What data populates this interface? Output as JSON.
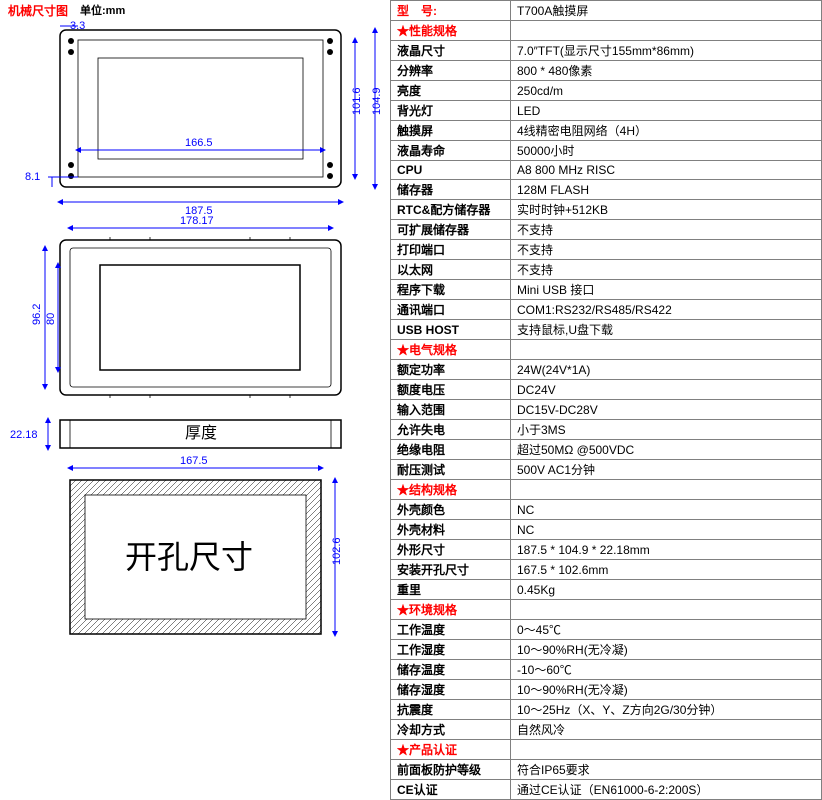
{
  "left": {
    "title": "机械尺寸图",
    "unit": "单位:mm",
    "dims": {
      "top_gap": "3.3",
      "inner_h1": "101.6",
      "outer_h1": "104.9",
      "inner_w1": "166.5",
      "left_gap": "8.1",
      "outer_w1": "187.5",
      "top_w2": "178.17",
      "left_h2a": "96.2",
      "left_h2b": "80",
      "thickness_label": "厚度",
      "thickness": "22.18",
      "cut_w": "167.5",
      "cut_h": "102.6",
      "cut_label": "开孔尺寸"
    },
    "colors": {
      "dim": "#0000ff",
      "outline": "#000000",
      "title": "#ff0000"
    }
  },
  "spec": {
    "model_label": "型　号:",
    "model_value": "T700A触摸屏",
    "sections": [
      {
        "header": "★性能规格",
        "rows": [
          [
            "液晶尺寸",
            "7.0″TFT(显示尺寸155mm*86mm)"
          ],
          [
            "分辨率",
            "800 * 480像素"
          ],
          [
            "亮度",
            "250cd/m"
          ],
          [
            "背光灯",
            "LED"
          ],
          [
            "触摸屏",
            "4线精密电阻网络（4H）"
          ],
          [
            "液晶寿命",
            "50000小时"
          ],
          [
            "CPU",
            "A8 800 MHz RISC"
          ],
          [
            "储存器",
            "128M FLASH"
          ],
          [
            "RTC&配方储存器",
            "实时时钟+512KB"
          ],
          [
            "可扩展储存器",
            "不支持"
          ],
          [
            "打印端口",
            "不支持"
          ],
          [
            "以太网",
            "不支持"
          ],
          [
            "程序下载",
            "Mini USB 接口"
          ],
          [
            "通讯端口",
            "COM1:RS232/RS485/RS422"
          ],
          [
            "USB HOST",
            "支持鼠标,U盘下载"
          ]
        ]
      },
      {
        "header": "★电气规格",
        "rows": [
          [
            "额定功率",
            "24W(24V*1A)"
          ],
          [
            "额度电压",
            "DC24V"
          ],
          [
            "输入范围",
            "DC15V-DC28V"
          ],
          [
            "允许失电",
            "小于3MS"
          ],
          [
            "绝缘电阻",
            "超过50MΩ @500VDC"
          ],
          [
            "耐压测试",
            "500V AC1分钟"
          ]
        ]
      },
      {
        "header": "★结构规格",
        "rows": [
          [
            "外壳颜色",
            "NC"
          ],
          [
            "外壳材料",
            "NC"
          ],
          [
            "外形尺寸",
            "187.5 * 104.9 * 22.18mm"
          ],
          [
            "安装开孔尺寸",
            "167.5 * 102.6mm"
          ],
          [
            "重里",
            "0.45Kg"
          ]
        ]
      },
      {
        "header": "★环境规格",
        "rows": [
          [
            "工作温度",
            "0～45℃"
          ],
          [
            "工作湿度",
            "10～90%RH(无冷凝)"
          ],
          [
            "储存温度",
            "-10～60℃"
          ],
          [
            "储存湿度",
            "10～90%RH(无冷凝)"
          ],
          [
            "抗震度",
            "10～25Hz（X、Y、Z方向2G/30分钟）"
          ],
          [
            "冷却方式",
            "自然风冷"
          ]
        ]
      },
      {
        "header": "★产品认证",
        "rows": [
          [
            "前面板防护等级",
            "符合IP65要求"
          ],
          [
            "CE认证",
            "通过CE认证（EN61000-6-2:200S）"
          ]
        ]
      }
    ]
  }
}
